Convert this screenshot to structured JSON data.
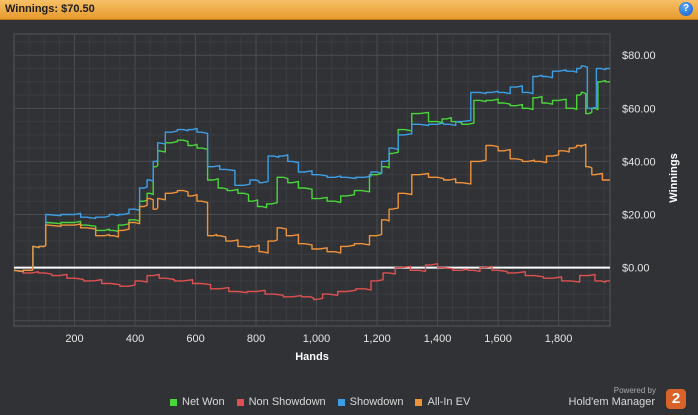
{
  "header": {
    "title": "Winnings: $70.50",
    "help_icon": "question-mark-icon",
    "help_label": "?"
  },
  "footer": {
    "powered_by": "Powered by",
    "brand": "Hold'em Manager",
    "brand_badge": "2"
  },
  "chart_data": {
    "type": "line",
    "xlabel": "Hands",
    "ylabel": "Winnings",
    "xlim": [
      0,
      1970
    ],
    "ylim": [
      -22,
      88
    ],
    "x_ticks": [
      200,
      400,
      600,
      800,
      1000,
      1200,
      1400,
      1600,
      1800
    ],
    "x_tick_labels": [
      "200",
      "400",
      "600",
      "800",
      "1,000",
      "1,200",
      "1,400",
      "1,600",
      "1,800"
    ],
    "y_ticks": [
      0,
      20,
      40,
      60,
      80
    ],
    "y_tick_labels": [
      "$0.00",
      "$20.00",
      "$40.00",
      "$60.00",
      "$80.00"
    ],
    "grid": true,
    "legend_position": "bottom",
    "series": [
      {
        "name": "Net Won",
        "color": "#4ad53a",
        "x": [
          0,
          60,
          65,
          100,
          110,
          200,
          240,
          300,
          330,
          360,
          400,
          430,
          450,
          470,
          480,
          520,
          560,
          590,
          620,
          660,
          690,
          720,
          760,
          790,
          820,
          850,
          890,
          920,
          960,
          1010,
          1060,
          1100,
          1150,
          1200,
          1230,
          1250,
          1290,
          1340,
          1400,
          1430,
          1460,
          1500,
          1540,
          1580,
          1620,
          1660,
          1700,
          1730,
          1760,
          1800,
          1850,
          1870,
          1880,
          1900,
          1920,
          1940,
          1970
        ],
        "y": [
          -1,
          -1,
          8,
          8,
          17,
          17,
          16,
          14,
          14,
          16,
          18,
          25,
          28,
          38,
          44,
          47,
          48,
          46,
          45,
          33,
          30,
          29,
          28,
          25,
          23,
          24,
          34,
          32,
          30,
          26,
          25,
          27,
          29,
          35,
          38,
          43,
          52,
          58,
          55,
          56,
          55,
          54,
          63,
          63,
          62,
          61,
          60,
          64,
          62,
          63,
          60,
          65,
          66,
          58,
          60,
          70,
          70
        ]
      },
      {
        "name": "Non Showdown",
        "color": "#e05050",
        "x": [
          0,
          60,
          100,
          150,
          200,
          260,
          320,
          380,
          420,
          460,
          500,
          560,
          620,
          680,
          740,
          800,
          860,
          920,
          980,
          1000,
          1040,
          1100,
          1160,
          1200,
          1240,
          1280,
          1340,
          1380,
          1420,
          1480,
          1520,
          1560,
          1600,
          1660,
          1720,
          1780,
          1840,
          1900,
          1940,
          1970
        ],
        "y": [
          -1,
          -2,
          -2,
          -3,
          -4,
          -5,
          -6,
          -7,
          -5,
          -3,
          -4,
          -5,
          -6,
          -8,
          -9,
          -9,
          -10,
          -11,
          -11,
          -12,
          -10,
          -9,
          -8,
          -5,
          -2,
          0,
          -1,
          1,
          0,
          -1,
          -1,
          0,
          -1,
          -2,
          -3,
          -4,
          -5,
          -3,
          -5,
          -5
        ]
      },
      {
        "name": "Showdown",
        "color": "#3d9ee5",
        "x": [
          0,
          60,
          65,
          100,
          110,
          200,
          240,
          300,
          330,
          360,
          400,
          430,
          450,
          470,
          480,
          520,
          560,
          590,
          620,
          660,
          700,
          760,
          800,
          820,
          860,
          890,
          920,
          960,
          1010,
          1060,
          1100,
          1160,
          1200,
          1230,
          1250,
          1290,
          1340,
          1400,
          1440,
          1480,
          1540,
          1580,
          1620,
          1660,
          1700,
          1730,
          1760,
          1800,
          1850,
          1870,
          1880,
          1910,
          1940,
          1970
        ],
        "y": [
          -1,
          -1,
          8,
          8,
          20,
          20,
          19,
          19,
          20,
          20,
          22,
          30,
          33,
          40,
          47,
          51,
          52,
          52,
          51,
          38,
          37,
          31,
          33,
          32,
          42,
          42,
          40,
          36,
          35,
          34,
          34,
          34,
          36,
          40,
          45,
          50,
          54,
          54,
          54,
          55,
          66,
          66,
          66,
          68,
          66,
          72,
          72,
          74,
          74,
          75,
          76,
          60,
          75,
          75
        ]
      },
      {
        "name": "All-In EV",
        "color": "#f0923a",
        "x": [
          0,
          60,
          65,
          100,
          110,
          200,
          240,
          300,
          330,
          360,
          400,
          430,
          450,
          470,
          480,
          520,
          560,
          590,
          620,
          660,
          680,
          720,
          760,
          800,
          820,
          860,
          880,
          920,
          960,
          1010,
          1060,
          1100,
          1150,
          1200,
          1230,
          1250,
          1290,
          1340,
          1400,
          1440,
          1480,
          1540,
          1580,
          1620,
          1660,
          1700,
          1740,
          1780,
          1820,
          1850,
          1870,
          1880,
          1900,
          1920,
          1970
        ],
        "y": [
          -1,
          -1,
          8,
          8,
          16,
          16,
          15,
          12,
          12,
          14,
          17,
          23,
          26,
          22,
          26,
          28,
          29,
          27,
          25,
          12,
          12,
          10,
          8,
          8,
          6,
          10,
          15,
          12,
          9,
          7,
          6,
          8,
          9,
          12,
          18,
          22,
          28,
          35,
          34,
          33,
          32,
          40,
          46,
          44,
          41,
          40,
          40,
          42,
          44,
          45,
          46,
          46,
          38,
          35,
          33
        ]
      }
    ]
  }
}
